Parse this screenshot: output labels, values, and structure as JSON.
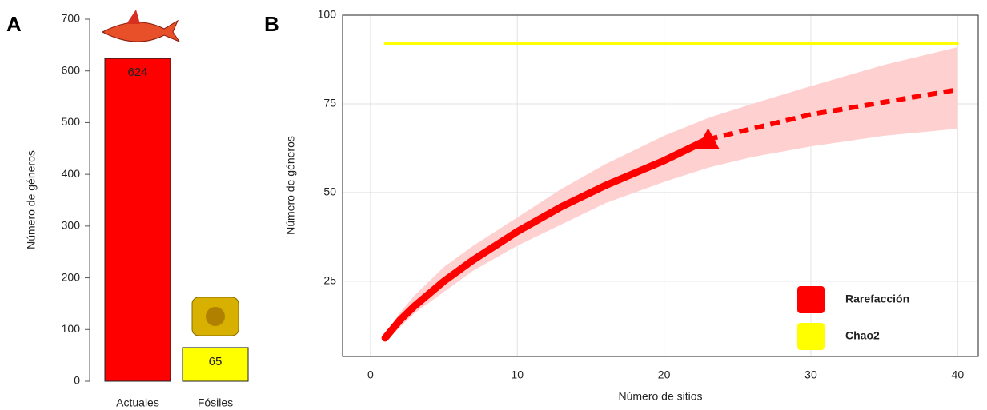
{
  "chart_data": [
    {
      "type": "bar",
      "panel_label": "A",
      "ylabel": "Número de géneros",
      "categories": [
        "Actuales",
        "Fósiles"
      ],
      "values": [
        624,
        65
      ],
      "colors": [
        "#ff0000",
        "#ffff00"
      ],
      "label_colors": [
        "#ffffff",
        "#000000"
      ],
      "ylim": [
        0,
        700
      ],
      "yticks": [
        0,
        100,
        200,
        300,
        400,
        500,
        600,
        700
      ]
    },
    {
      "type": "line",
      "panel_label": "B",
      "xlabel": "Número de sitios",
      "ylabel": "Número de géneros",
      "xlim": [
        -1.9,
        41.4
      ],
      "xticks": [
        0,
        10,
        20,
        30,
        40
      ],
      "ylim": [
        3.8,
        100
      ],
      "yticks": [
        25,
        50,
        75,
        100
      ],
      "grid": true,
      "legend": "lower right",
      "series": [
        {
          "name": "Rarefacción",
          "color": "#ff0000",
          "band_color": "#ffd0d0",
          "x": [
            1,
            2,
            3,
            5,
            7,
            10,
            13,
            16,
            20,
            23,
            26,
            30,
            35,
            40
          ],
          "values": [
            9,
            14,
            18,
            25,
            31,
            39,
            46,
            52,
            59,
            65,
            null,
            null,
            null,
            null
          ],
          "extrapolated": [
            null,
            null,
            null,
            null,
            null,
            null,
            null,
            null,
            null,
            65,
            68,
            72,
            75.5,
            79
          ],
          "lower": [
            8,
            12,
            16,
            22,
            28,
            35,
            41,
            47,
            53,
            57,
            60,
            63,
            66,
            68
          ],
          "upper": [
            10,
            16,
            21,
            29,
            35,
            43,
            51,
            58,
            66,
            71,
            75,
            80,
            86,
            91
          ]
        },
        {
          "name": "Chao2",
          "color": "#ffff00",
          "x": [
            1,
            40
          ],
          "values": [
            92,
            92
          ]
        }
      ]
    }
  ]
}
